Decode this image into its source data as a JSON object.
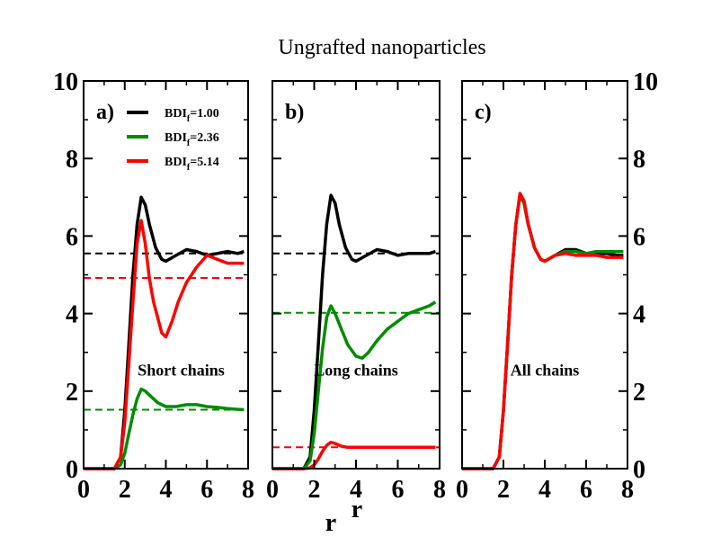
{
  "figure_title": "Ungrafted nanoparticles",
  "colors": {
    "black": "#000000",
    "green": "#008c00",
    "red": "#ff0000"
  },
  "chart_data": [
    {
      "panel": "a)",
      "type": "line",
      "annotation": "Short chains",
      "xlabel": "r",
      "xlim": [
        0,
        8
      ],
      "ylim": [
        0,
        10
      ],
      "xticks": [
        0,
        2,
        4,
        6,
        8
      ],
      "yticks": [
        0,
        2,
        4,
        6,
        8,
        10
      ],
      "legend": [
        {
          "prefix": "BDI",
          "sub": "f",
          "suffix": "=1.00",
          "color": "#000000"
        },
        {
          "prefix": "BDI",
          "sub": "f",
          "suffix": "=2.36",
          "color": "#008c00"
        },
        {
          "prefix": "BDI",
          "sub": "f",
          "suffix": "=5.14",
          "color": "#ff0000"
        }
      ],
      "series": [
        {
          "name": "BDIf=1.00",
          "color": "#000000",
          "x": [
            0,
            1.5,
            1.8,
            2.0,
            2.2,
            2.4,
            2.6,
            2.8,
            3.0,
            3.2,
            3.5,
            3.8,
            4.0,
            4.5,
            5.0,
            5.5,
            6.0,
            6.5,
            7.0,
            7.5,
            7.8
          ],
          "y": [
            0,
            0,
            0.3,
            1.5,
            3.2,
            5.0,
            6.3,
            7.0,
            6.8,
            6.3,
            5.7,
            5.4,
            5.35,
            5.5,
            5.65,
            5.6,
            5.5,
            5.55,
            5.6,
            5.55,
            5.6
          ],
          "hline": 5.55
        },
        {
          "name": "BDIf=2.36",
          "color": "#008c00",
          "x": [
            0,
            1.5,
            1.8,
            2.0,
            2.2,
            2.4,
            2.6,
            2.8,
            3.0,
            3.3,
            3.6,
            4.0,
            4.5,
            5.0,
            5.5,
            6.0,
            6.5,
            7.0,
            7.5,
            7.8
          ],
          "y": [
            0,
            0,
            0.1,
            0.4,
            0.9,
            1.4,
            1.8,
            2.05,
            2.0,
            1.85,
            1.7,
            1.6,
            1.6,
            1.65,
            1.65,
            1.6,
            1.58,
            1.55,
            1.53,
            1.52
          ],
          "hline": 1.52
        },
        {
          "name": "BDIf=5.14",
          "color": "#ff0000",
          "x": [
            0,
            1.5,
            1.8,
            2.0,
            2.2,
            2.4,
            2.6,
            2.8,
            3.0,
            3.2,
            3.4,
            3.6,
            3.8,
            4.0,
            4.3,
            4.6,
            5.0,
            5.5,
            6.0,
            6.5,
            7.0,
            7.5,
            7.8
          ],
          "y": [
            0,
            0,
            0.3,
            1.2,
            2.7,
            4.3,
            5.8,
            6.4,
            5.8,
            4.9,
            4.3,
            3.9,
            3.5,
            3.4,
            3.8,
            4.3,
            4.8,
            5.2,
            5.5,
            5.4,
            5.3,
            5.3,
            5.3
          ],
          "hline": 4.92
        }
      ]
    },
    {
      "panel": "b)",
      "type": "line",
      "annotation": "Long chains",
      "xlabel": "r",
      "xlim": [
        0,
        8
      ],
      "ylim": [
        0,
        10
      ],
      "xticks": [
        0,
        2,
        4,
        6,
        8
      ],
      "yticks": [],
      "series": [
        {
          "name": "BDIf=1.00",
          "color": "#000000",
          "x": [
            0,
            1.5,
            1.8,
            2.0,
            2.2,
            2.4,
            2.6,
            2.8,
            3.0,
            3.2,
            3.5,
            3.8,
            4.0,
            4.5,
            5.0,
            5.5,
            6.0,
            6.5,
            7.0,
            7.5,
            7.8
          ],
          "y": [
            0,
            0,
            0.3,
            1.5,
            3.2,
            5.0,
            6.3,
            7.05,
            6.85,
            6.3,
            5.7,
            5.4,
            5.35,
            5.5,
            5.65,
            5.6,
            5.5,
            5.55,
            5.55,
            5.55,
            5.6
          ],
          "hline": 5.55
        },
        {
          "name": "BDIf=2.36",
          "color": "#008c00",
          "x": [
            0,
            1.5,
            1.8,
            2.0,
            2.2,
            2.4,
            2.6,
            2.8,
            3.0,
            3.3,
            3.6,
            4.0,
            4.3,
            4.6,
            5.0,
            5.5,
            6.0,
            6.5,
            7.0,
            7.5,
            7.8
          ],
          "y": [
            0,
            0,
            0.2,
            0.9,
            2.0,
            3.1,
            3.9,
            4.2,
            4.0,
            3.6,
            3.2,
            2.9,
            2.85,
            3.0,
            3.3,
            3.6,
            3.8,
            4.0,
            4.1,
            4.2,
            4.3
          ],
          "hline": 4.02
        },
        {
          "name": "BDIf=5.14",
          "color": "#ff0000",
          "x": [
            0,
            1.5,
            1.8,
            2.0,
            2.2,
            2.4,
            2.6,
            2.8,
            3.0,
            3.3,
            3.6,
            4.0,
            5.0,
            6.0,
            7.0,
            7.8
          ],
          "y": [
            0,
            0,
            0.02,
            0.1,
            0.25,
            0.45,
            0.6,
            0.68,
            0.65,
            0.58,
            0.55,
            0.55,
            0.55,
            0.55,
            0.55,
            0.55
          ],
          "hline": 0.55
        }
      ]
    },
    {
      "panel": "c)",
      "type": "line",
      "annotation": "All chains",
      "xlabel": "",
      "xlim": [
        0,
        8
      ],
      "ylim": [
        0,
        10
      ],
      "xticks": [
        0,
        2,
        4,
        6,
        8
      ],
      "yticks": [
        0,
        2,
        4,
        6,
        8,
        10
      ],
      "series": [
        {
          "name": "BDIf=1.00",
          "color": "#000000",
          "x": [
            0,
            1.5,
            1.8,
            2.0,
            2.2,
            2.4,
            2.6,
            2.8,
            3.0,
            3.2,
            3.5,
            3.8,
            4.0,
            4.5,
            5.0,
            5.5,
            6.0,
            6.5,
            7.0,
            7.5,
            7.8
          ],
          "y": [
            0,
            0,
            0.3,
            1.5,
            3.2,
            5.0,
            6.3,
            7.05,
            6.85,
            6.3,
            5.7,
            5.4,
            5.35,
            5.5,
            5.65,
            5.65,
            5.55,
            5.55,
            5.55,
            5.5,
            5.5
          ]
        },
        {
          "name": "BDIf=2.36",
          "color": "#008c00",
          "x": [
            0,
            1.5,
            1.8,
            2.0,
            2.2,
            2.4,
            2.6,
            2.8,
            3.0,
            3.2,
            3.5,
            3.8,
            4.0,
            4.5,
            5.0,
            5.5,
            6.0,
            6.5,
            7.0,
            7.5,
            7.8
          ],
          "y": [
            0,
            0,
            0.3,
            1.5,
            3.2,
            5.0,
            6.3,
            7.05,
            6.85,
            6.3,
            5.7,
            5.4,
            5.35,
            5.5,
            5.6,
            5.6,
            5.55,
            5.6,
            5.6,
            5.6,
            5.6
          ]
        },
        {
          "name": "BDIf=5.14",
          "color": "#ff0000",
          "x": [
            0,
            1.5,
            1.8,
            2.0,
            2.2,
            2.4,
            2.6,
            2.8,
            3.0,
            3.2,
            3.5,
            3.8,
            4.0,
            4.5,
            5.0,
            5.5,
            6.0,
            6.5,
            7.0,
            7.5,
            7.8
          ],
          "y": [
            0,
            0,
            0.3,
            1.5,
            3.2,
            5.0,
            6.3,
            7.1,
            6.9,
            6.3,
            5.7,
            5.4,
            5.35,
            5.5,
            5.55,
            5.5,
            5.5,
            5.5,
            5.45,
            5.45,
            5.45
          ]
        }
      ]
    }
  ]
}
